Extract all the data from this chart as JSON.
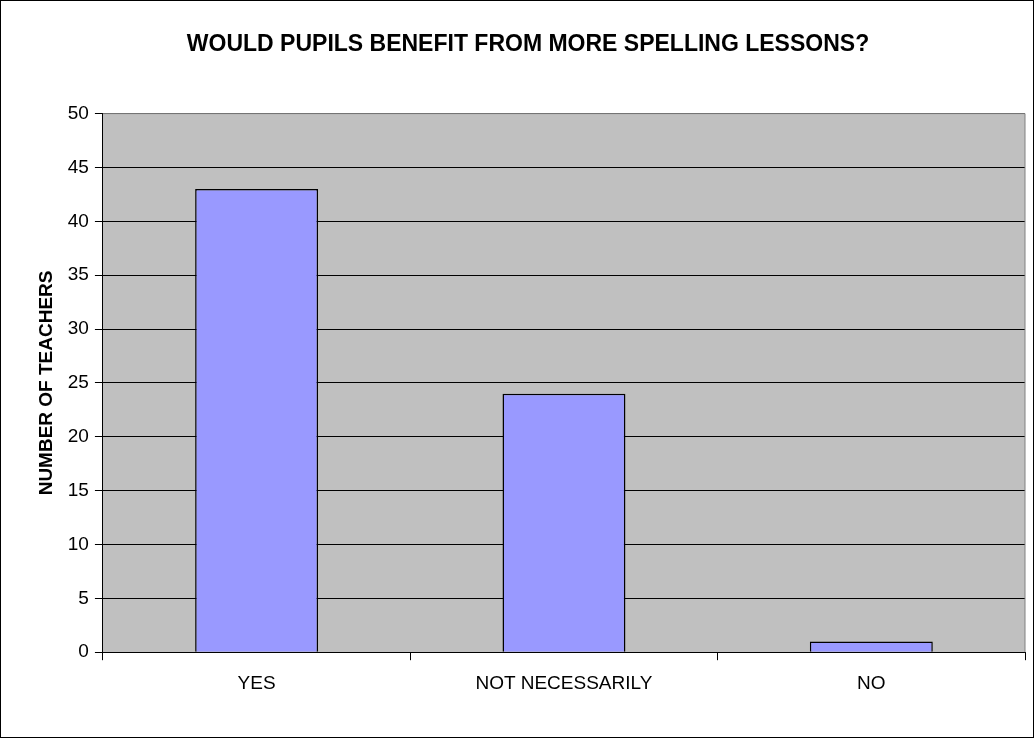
{
  "chart_data": {
    "type": "bar",
    "title": "WOULD PUPILS BENEFIT FROM MORE SPELLING LESSONS?",
    "ylabel": "NUMBER OF TEACHERS",
    "categories": [
      "YES",
      "NOT NECESSARILY",
      "NO"
    ],
    "values": [
      43,
      24,
      1
    ],
    "color": "#9999ff",
    "ylim": [
      0,
      50
    ],
    "yticks": [
      0,
      5,
      10,
      15,
      20,
      25,
      30,
      35,
      40,
      45,
      50
    ],
    "grid": "y",
    "legend": false
  }
}
